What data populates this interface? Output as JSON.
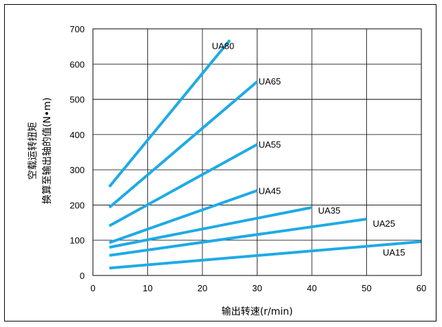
{
  "chart_data": {
    "type": "line",
    "ylabel_line1": "空载运转扭矩",
    "ylabel_line2": "换算至输出轴的值(N•m)",
    "xlabel": "输出转速(r/min)",
    "xlim": [
      0,
      60
    ],
    "ylim": [
      0,
      700
    ],
    "xticks": [
      "0",
      "10",
      "20",
      "30",
      "40",
      "50",
      "60"
    ],
    "yticks": [
      "0",
      "100",
      "200",
      "300",
      "400",
      "500",
      "600",
      "700"
    ],
    "grid": true,
    "line_color": "#1eaae6",
    "series": [
      {
        "name": "UA80",
        "x": [
          3,
          25
        ],
        "y": [
          252,
          668
        ]
      },
      {
        "name": "UA65",
        "x": [
          3,
          30
        ],
        "y": [
          193,
          550
        ]
      },
      {
        "name": "UA55",
        "x": [
          3,
          30
        ],
        "y": [
          141,
          372
        ]
      },
      {
        "name": "UA45",
        "x": [
          3,
          30
        ],
        "y": [
          93,
          241
        ]
      },
      {
        "name": "UA35",
        "x": [
          3,
          40
        ],
        "y": [
          80,
          193
        ]
      },
      {
        "name": "UA25",
        "x": [
          3,
          50
        ],
        "y": [
          57,
          160
        ]
      },
      {
        "name": "UA15",
        "x": [
          3,
          60
        ],
        "y": [
          21,
          96
        ]
      }
    ]
  }
}
